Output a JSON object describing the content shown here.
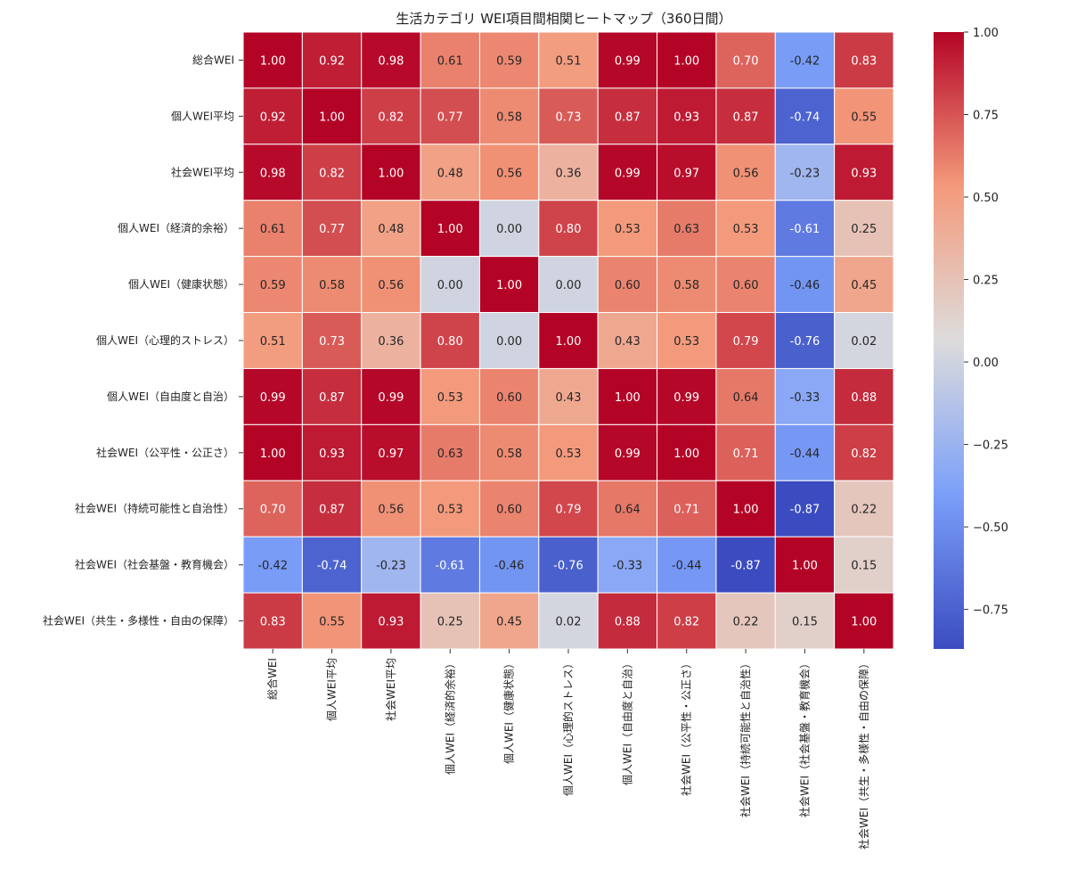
{
  "chart_data": {
    "type": "heatmap",
    "title": "生活カテゴリ WEI項目間相関ヒートマップ（360日間）",
    "xlabel": "",
    "ylabel": "",
    "labels": [
      "総合WEI",
      "個人WEI平均",
      "社会WEI平均",
      "個人WEI（経済的余裕）",
      "個人WEI（健康状態）",
      "個人WEI（心理的ストレス）",
      "個人WEI（自由度と自治）",
      "社会WEI（公平性・公正さ）",
      "社会WEI（持続可能性と自治性）",
      "社会WEI（社会基盤・教育機会）",
      "社会WEI（共生・多様性・自由の保障）"
    ],
    "values": [
      [
        1.0,
        0.92,
        0.98,
        0.61,
        0.59,
        0.51,
        0.99,
        1.0,
        0.7,
        -0.42,
        0.83
      ],
      [
        0.92,
        1.0,
        0.82,
        0.77,
        0.58,
        0.73,
        0.87,
        0.93,
        0.87,
        -0.74,
        0.55
      ],
      [
        0.98,
        0.82,
        1.0,
        0.48,
        0.56,
        0.36,
        0.99,
        0.97,
        0.56,
        -0.23,
        0.93
      ],
      [
        0.61,
        0.77,
        0.48,
        1.0,
        0.0,
        0.8,
        0.53,
        0.63,
        0.53,
        -0.61,
        0.25
      ],
      [
        0.59,
        0.58,
        0.56,
        0.0,
        1.0,
        0.0,
        0.6,
        0.58,
        0.6,
        -0.46,
        0.45
      ],
      [
        0.51,
        0.73,
        0.36,
        0.8,
        0.0,
        1.0,
        0.43,
        0.53,
        0.79,
        -0.76,
        0.02
      ],
      [
        0.99,
        0.87,
        0.99,
        0.53,
        0.6,
        0.43,
        1.0,
        0.99,
        0.64,
        -0.33,
        0.88
      ],
      [
        1.0,
        0.93,
        0.97,
        0.63,
        0.58,
        0.53,
        0.99,
        1.0,
        0.71,
        -0.44,
        0.82
      ],
      [
        0.7,
        0.87,
        0.56,
        0.53,
        0.6,
        0.79,
        0.64,
        0.71,
        1.0,
        -0.87,
        0.22
      ],
      [
        -0.42,
        -0.74,
        -0.23,
        -0.61,
        -0.46,
        -0.76,
        -0.33,
        -0.44,
        -0.87,
        1.0,
        0.15
      ],
      [
        0.83,
        0.55,
        0.93,
        0.25,
        0.45,
        0.02,
        0.88,
        0.82,
        0.22,
        0.15,
        1.0
      ]
    ],
    "value_format": "2 decimals",
    "colormap": "coolwarm",
    "colorbar": {
      "range": [
        -0.87,
        1.0
      ],
      "ticks": [
        1.0,
        0.75,
        0.5,
        0.25,
        0.0,
        -0.25,
        -0.5,
        -0.75
      ],
      "tick_labels": [
        "1.00",
        "0.75",
        "0.50",
        "0.25",
        "0.00",
        "−0.25",
        "−0.50",
        "−0.75"
      ]
    },
    "colormap_stops": [
      {
        "t": 0.0,
        "color": "#3b4cc0"
      },
      {
        "t": 0.25,
        "color": "#7b9ff9"
      },
      {
        "t": 0.5,
        "color": "#dddcdc"
      },
      {
        "t": 0.75,
        "color": "#f49a7b"
      },
      {
        "t": 1.0,
        "color": "#b40426"
      }
    ],
    "grid": false,
    "cell_border_color": "#ffffff"
  }
}
